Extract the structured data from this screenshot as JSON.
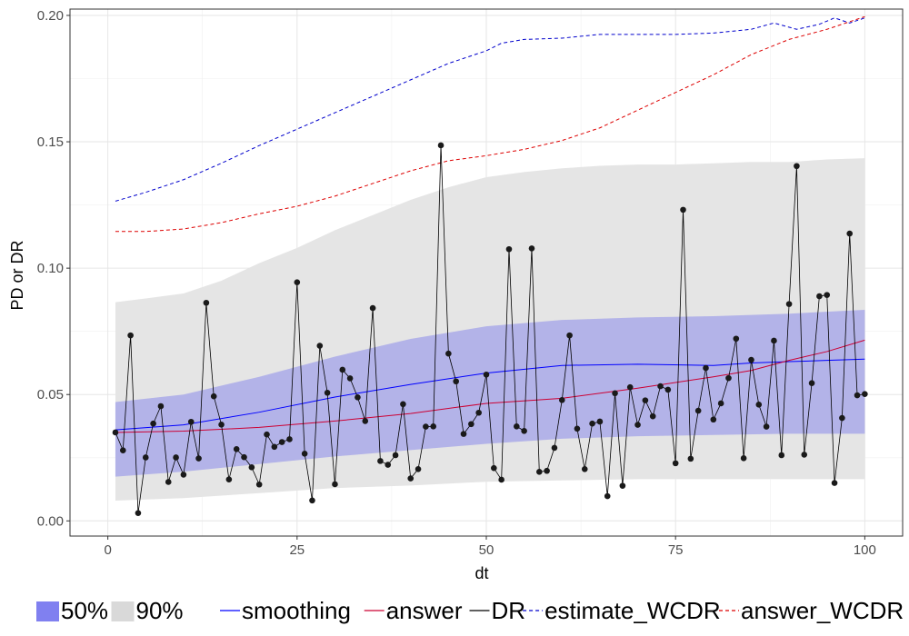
{
  "chart_data": {
    "type": "line",
    "title": "",
    "xlabel": "dt",
    "ylabel": "PD or DR",
    "xlim": [
      -5.0,
      105.0
    ],
    "ylim": [
      -0.006,
      0.2025
    ],
    "x_ticks": [
      0,
      25,
      50,
      75,
      100
    ],
    "x_tick_labels": [
      "0",
      "25",
      "50",
      "75",
      "100"
    ],
    "y_ticks": [
      0.0,
      0.05,
      0.1,
      0.15,
      0.2
    ],
    "y_tick_labels": [
      "0.00",
      "0.05",
      "0.10",
      "0.15",
      "0.20"
    ],
    "grid": true,
    "legend_position": "bottom",
    "legend": {
      "fill_items": [
        {
          "name": "50%",
          "color": "#8080f0"
        },
        {
          "name": "90%",
          "color": "#d9d9d9"
        }
      ],
      "line_items": [
        {
          "name": "smoothing",
          "color": "#0000ff",
          "dash": "solid"
        },
        {
          "name": "answer",
          "color": "#cc0033",
          "dash": "solid"
        },
        {
          "name": "DR",
          "color": "#000000",
          "dash": "solid"
        },
        {
          "name": "estimate_WCDR",
          "color": "#0000cc",
          "dash": "dashed"
        },
        {
          "name": "answer_WCDR",
          "color": "#dd0000",
          "dash": "dashed"
        }
      ]
    },
    "bands": [
      {
        "name": "90%",
        "color": "#e5e5e5",
        "lower_points": [
          [
            1,
            0.008
          ],
          [
            10,
            0.009
          ],
          [
            20,
            0.011
          ],
          [
            30,
            0.013
          ],
          [
            40,
            0.014
          ],
          [
            50,
            0.0155
          ],
          [
            60,
            0.016
          ],
          [
            70,
            0.0165
          ],
          [
            80,
            0.0165
          ],
          [
            90,
            0.0165
          ],
          [
            100,
            0.0165
          ]
        ],
        "upper_points": [
          [
            1,
            0.0865
          ],
          [
            5,
            0.088
          ],
          [
            10,
            0.09
          ],
          [
            15,
            0.095
          ],
          [
            20,
            0.102
          ],
          [
            25,
            0.108
          ],
          [
            30,
            0.115
          ],
          [
            35,
            0.121
          ],
          [
            40,
            0.127
          ],
          [
            45,
            0.132
          ],
          [
            50,
            0.136
          ],
          [
            55,
            0.138
          ],
          [
            60,
            0.1395
          ],
          [
            65,
            0.1405
          ],
          [
            70,
            0.141
          ],
          [
            75,
            0.141
          ],
          [
            80,
            0.1415
          ],
          [
            85,
            0.142
          ],
          [
            90,
            0.142
          ],
          [
            95,
            0.143
          ],
          [
            100,
            0.1435
          ]
        ]
      },
      {
        "name": "50%",
        "color": "#b3b3e8",
        "lower_points": [
          [
            1,
            0.0175
          ],
          [
            10,
            0.0195
          ],
          [
            20,
            0.0225
          ],
          [
            30,
            0.0255
          ],
          [
            40,
            0.028
          ],
          [
            50,
            0.0305
          ],
          [
            60,
            0.0325
          ],
          [
            70,
            0.0335
          ],
          [
            80,
            0.034
          ],
          [
            90,
            0.0345
          ],
          [
            100,
            0.0345
          ]
        ],
        "upper_points": [
          [
            1,
            0.047
          ],
          [
            10,
            0.05
          ],
          [
            20,
            0.057
          ],
          [
            30,
            0.065
          ],
          [
            40,
            0.072
          ],
          [
            50,
            0.077
          ],
          [
            60,
            0.0795
          ],
          [
            70,
            0.0805
          ],
          [
            80,
            0.081
          ],
          [
            90,
            0.082
          ],
          [
            100,
            0.0835
          ]
        ]
      }
    ],
    "series": [
      {
        "name": "smoothing",
        "color": "#0000ff",
        "dash": "solid",
        "points": [
          [
            1,
            0.036
          ],
          [
            10,
            0.038
          ],
          [
            20,
            0.043
          ],
          [
            30,
            0.049
          ],
          [
            40,
            0.054
          ],
          [
            50,
            0.0585
          ],
          [
            60,
            0.0615
          ],
          [
            70,
            0.062
          ],
          [
            80,
            0.0615
          ],
          [
            85,
            0.0625
          ],
          [
            90,
            0.063
          ],
          [
            95,
            0.0635
          ],
          [
            100,
            0.064
          ]
        ]
      },
      {
        "name": "answer",
        "color": "#cc0033",
        "dash": "solid",
        "points": [
          [
            1,
            0.035
          ],
          [
            10,
            0.0355
          ],
          [
            20,
            0.037
          ],
          [
            30,
            0.0395
          ],
          [
            40,
            0.0425
          ],
          [
            50,
            0.0465
          ],
          [
            60,
            0.0485
          ],
          [
            70,
            0.0525
          ],
          [
            80,
            0.057
          ],
          [
            85,
            0.0595
          ],
          [
            90,
            0.0635
          ],
          [
            95,
            0.067
          ],
          [
            100,
            0.0715
          ]
        ]
      },
      {
        "name": "estimate_WCDR",
        "color": "#0000cc",
        "dash": "dashed",
        "points": [
          [
            1,
            0.1265
          ],
          [
            5,
            0.13
          ],
          [
            10,
            0.135
          ],
          [
            15,
            0.1415
          ],
          [
            20,
            0.1485
          ],
          [
            25,
            0.155
          ],
          [
            30,
            0.1615
          ],
          [
            35,
            0.168
          ],
          [
            40,
            0.1745
          ],
          [
            45,
            0.181
          ],
          [
            50,
            0.186
          ],
          [
            52,
            0.189
          ],
          [
            55,
            0.1905
          ],
          [
            60,
            0.191
          ],
          [
            65,
            0.1925
          ],
          [
            70,
            0.1925
          ],
          [
            75,
            0.1925
          ],
          [
            80,
            0.193
          ],
          [
            85,
            0.1945
          ],
          [
            88,
            0.197
          ],
          [
            91,
            0.1945
          ],
          [
            94,
            0.1965
          ],
          [
            96,
            0.199
          ],
          [
            98,
            0.197
          ],
          [
            100,
            0.199
          ]
        ]
      },
      {
        "name": "answer_WCDR",
        "color": "#dd0000",
        "dash": "dashed",
        "points": [
          [
            1,
            0.1145
          ],
          [
            5,
            0.1145
          ],
          [
            10,
            0.1155
          ],
          [
            15,
            0.118
          ],
          [
            20,
            0.1215
          ],
          [
            25,
            0.1245
          ],
          [
            30,
            0.1285
          ],
          [
            35,
            0.1335
          ],
          [
            40,
            0.1385
          ],
          [
            45,
            0.1425
          ],
          [
            50,
            0.1445
          ],
          [
            55,
            0.147
          ],
          [
            60,
            0.1505
          ],
          [
            65,
            0.1555
          ],
          [
            70,
            0.1625
          ],
          [
            75,
            0.1695
          ],
          [
            80,
            0.1765
          ],
          [
            85,
            0.1845
          ],
          [
            90,
            0.1905
          ],
          [
            95,
            0.1945
          ],
          [
            100,
            0.1995
          ]
        ]
      }
    ],
    "dr_series": {
      "name": "DR",
      "color": "#000000",
      "x": [
        1,
        2,
        3,
        4,
        5,
        6,
        7,
        8,
        9,
        10,
        11,
        12,
        13,
        14,
        15,
        16,
        17,
        18,
        19,
        20,
        21,
        22,
        23,
        24,
        25,
        26,
        27,
        28,
        29,
        30,
        31,
        32,
        33,
        34,
        35,
        36,
        37,
        38,
        39,
        40,
        41,
        42,
        43,
        44,
        45,
        46,
        47,
        48,
        49,
        50,
        51,
        52,
        53,
        54,
        55,
        56,
        57,
        58,
        59,
        60,
        61,
        62,
        63,
        64,
        65,
        66,
        67,
        68,
        69,
        70,
        71,
        72,
        73,
        74,
        75,
        76,
        77,
        78,
        79,
        80,
        81,
        82,
        83,
        84,
        85,
        86,
        87,
        88,
        89,
        90,
        91,
        92,
        93,
        94,
        95,
        96,
        97,
        98,
        99,
        100
      ],
      "values": [
        0.035,
        0.0279,
        0.0734,
        0.0031,
        0.0251,
        0.0385,
        0.0454,
        0.0154,
        0.0251,
        0.0183,
        0.0392,
        0.0247,
        0.0863,
        0.0493,
        0.0381,
        0.0164,
        0.0284,
        0.0252,
        0.0212,
        0.0144,
        0.0342,
        0.0293,
        0.0312,
        0.0323,
        0.0944,
        0.0266,
        0.0081,
        0.0693,
        0.0507,
        0.0145,
        0.0598,
        0.0564,
        0.0489,
        0.0395,
        0.0842,
        0.0237,
        0.0222,
        0.026,
        0.0462,
        0.0168,
        0.0205,
        0.0373,
        0.0374,
        0.1486,
        0.0662,
        0.0552,
        0.0344,
        0.0383,
        0.0428,
        0.0579,
        0.0209,
        0.0163,
        0.1075,
        0.0374,
        0.0356,
        0.1078,
        0.0194,
        0.0198,
        0.0289,
        0.0478,
        0.0734,
        0.0365,
        0.0205,
        0.0385,
        0.0393,
        0.0098,
        0.0505,
        0.0139,
        0.0529,
        0.038,
        0.0477,
        0.0414,
        0.0533,
        0.0519,
        0.0228,
        0.1231,
        0.0246,
        0.0436,
        0.0605,
        0.0401,
        0.0465,
        0.0565,
        0.0721,
        0.0248,
        0.0637,
        0.046,
        0.0373,
        0.0713,
        0.026,
        0.0858,
        0.1404,
        0.0262,
        0.0545,
        0.0889,
        0.0894,
        0.015,
        0.0407,
        0.1137,
        0.0497,
        0.0502
      ]
    }
  }
}
